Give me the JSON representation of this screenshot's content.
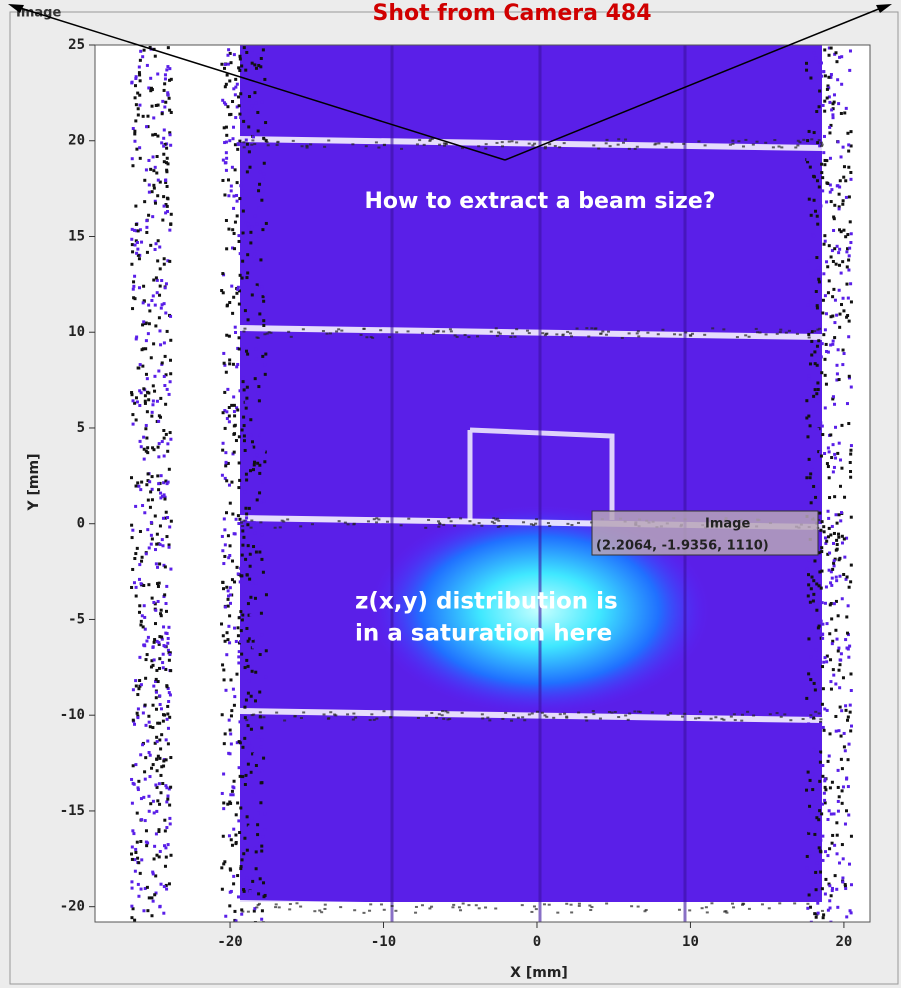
{
  "chart_data": {
    "type": "image",
    "panel_title": "Image",
    "title": "Shot from Camera 484",
    "question": "How to extract a beam size?",
    "annotation_lines": [
      "z(x,y) distribution is",
      "in a saturation here"
    ],
    "tooltip": {
      "name": "Image",
      "text": "(2.2064, -1.9356, 1110)"
    },
    "x_label": "X [mm]",
    "y_label": "Y [mm]",
    "xlim": [
      -28.8,
      21.7
    ],
    "ylim": [
      -20.8,
      25
    ],
    "xticks": [
      -20,
      -10,
      0,
      10,
      20
    ],
    "yticks": [
      -20,
      -15,
      -10,
      -5,
      0,
      5,
      10,
      15,
      20,
      25
    ]
  }
}
